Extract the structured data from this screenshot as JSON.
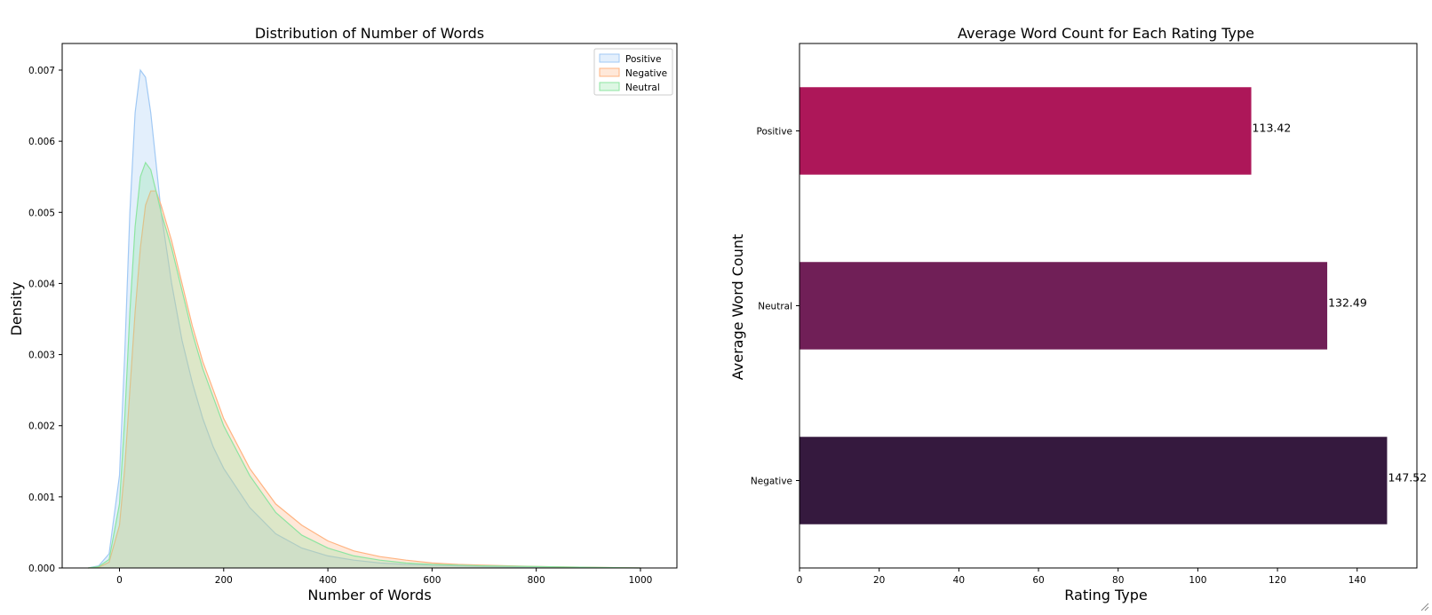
{
  "chart_data": [
    {
      "type": "area",
      "title": "Distribution of Number of Words",
      "xlabel": "Number of Words",
      "ylabel": "Density",
      "xlim": [
        -110,
        1070
      ],
      "ylim": [
        0,
        0.007
      ],
      "xticks": [
        0,
        200,
        400,
        600,
        800,
        1000
      ],
      "xtick_labels": [
        "0",
        "200",
        "400",
        "600",
        "800",
        "1000"
      ],
      "yticks": [
        0,
        0.001,
        0.002,
        0.003,
        0.004,
        0.005,
        0.006,
        0.007
      ],
      "ytick_labels": [
        "0.000",
        "0.001",
        "0.002",
        "0.003",
        "0.004",
        "0.005",
        "0.006",
        "0.007"
      ],
      "grid": false,
      "legend_position": "top-right",
      "x": [
        -60,
        -40,
        -20,
        0,
        10,
        20,
        30,
        40,
        50,
        60,
        70,
        80,
        100,
        120,
        140,
        160,
        180,
        200,
        250,
        300,
        350,
        400,
        450,
        500,
        550,
        600,
        650,
        700,
        800,
        900,
        1000
      ],
      "series": [
        {
          "name": "Positive",
          "color": "#a1c9f4",
          "values": [
            0,
            3e-05,
            0.0002,
            0.0013,
            0.003,
            0.005,
            0.0064,
            0.007,
            0.0069,
            0.0064,
            0.0057,
            0.005,
            0.004,
            0.0032,
            0.0026,
            0.0021,
            0.0017,
            0.0014,
            0.00085,
            0.00048,
            0.00028,
            0.00017,
            0.00011,
            7e-05,
            5e-05,
            4e-05,
            3e-05,
            2e-05,
            1e-05,
            5e-06,
            0
          ]
        },
        {
          "name": "Negative",
          "color": "#ffb482",
          "values": [
            0,
            1e-05,
            8e-05,
            0.0006,
            0.0014,
            0.0025,
            0.0036,
            0.0045,
            0.0051,
            0.0053,
            0.0053,
            0.0051,
            0.0046,
            0.004,
            0.0034,
            0.0029,
            0.0025,
            0.0021,
            0.0014,
            0.0009,
            0.0006,
            0.00038,
            0.00024,
            0.00016,
            0.00011,
            7e-05,
            5e-05,
            4e-05,
            2e-05,
            1e-05,
            0
          ]
        },
        {
          "name": "Neutral",
          "color": "#8de5a1",
          "values": [
            0,
            2e-05,
            0.00012,
            0.0009,
            0.0021,
            0.0036,
            0.0048,
            0.0055,
            0.0057,
            0.0056,
            0.0053,
            0.005,
            0.0045,
            0.0039,
            0.0033,
            0.0028,
            0.0024,
            0.002,
            0.0013,
            0.00078,
            0.00046,
            0.00028,
            0.00017,
            0.00011,
            7e-05,
            5e-05,
            4e-05,
            3e-05,
            2e-05,
            1e-05,
            0
          ]
        }
      ]
    },
    {
      "type": "bar",
      "orientation": "horizontal",
      "title": "Average Word Count for Each Rating Type",
      "xlabel": "Rating Type",
      "ylabel": "Average Word Count",
      "xlim": [
        0,
        155
      ],
      "xticks": [
        0,
        20,
        40,
        60,
        80,
        100,
        120,
        140
      ],
      "xtick_labels": [
        "0",
        "20",
        "40",
        "60",
        "80",
        "100",
        "120",
        "140"
      ],
      "grid": false,
      "categories": [
        "Positive",
        "Neutral",
        "Negative"
      ],
      "values": [
        113.42,
        132.49,
        147.52
      ],
      "data_labels": [
        "113.42",
        "132.49",
        "147.52"
      ],
      "colors": [
        "#ad1759",
        "#701f57",
        "#35193e"
      ]
    }
  ]
}
